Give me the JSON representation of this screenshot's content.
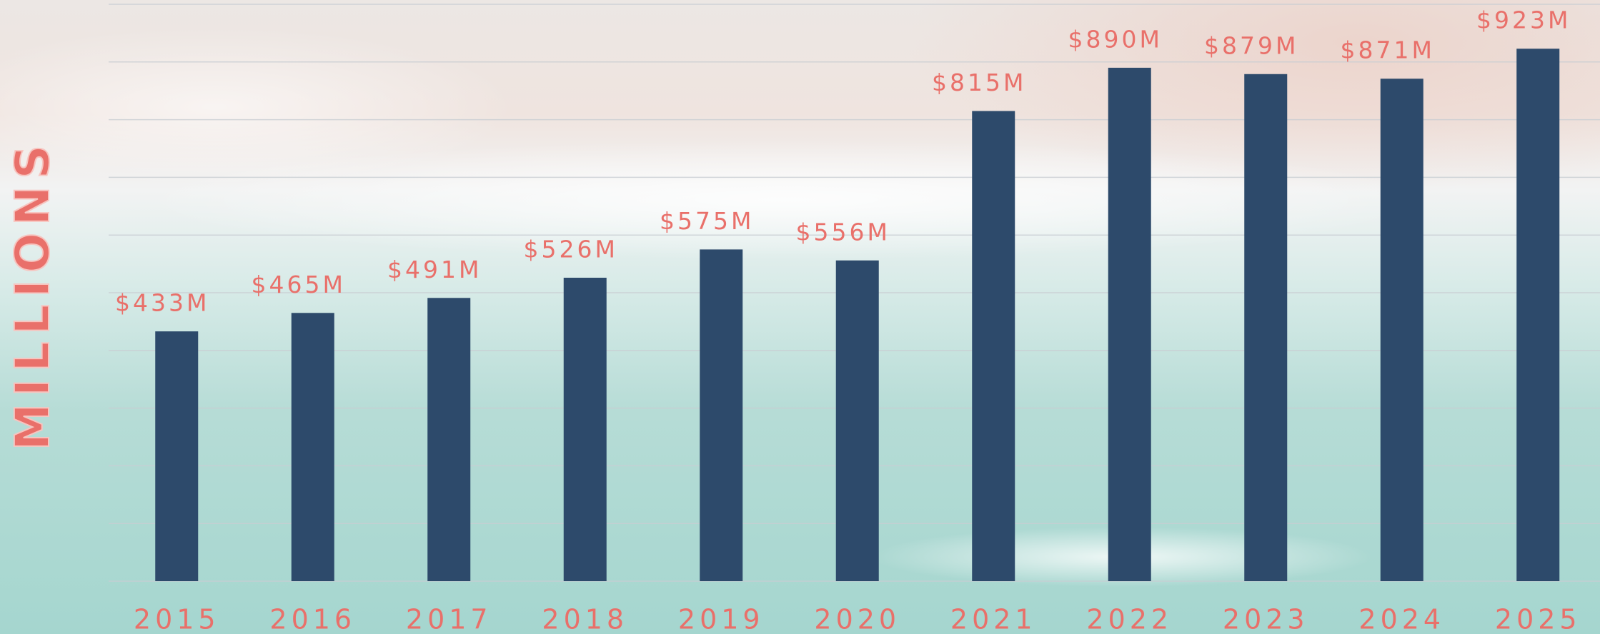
{
  "chart_data": {
    "type": "bar",
    "y_label": "MILLIONS",
    "categories": [
      "2015",
      "2016",
      "2017",
      "2018",
      "2019",
      "2020",
      "2021",
      "2022",
      "2023",
      "2024",
      "2025"
    ],
    "values": [
      433,
      465,
      491,
      526,
      575,
      556,
      815,
      890,
      879,
      871,
      923
    ],
    "value_labels": [
      "$433M",
      "$465M",
      "$491M",
      "$526M",
      "$575M",
      "$556M",
      "$815M",
      "$890M",
      "$879M",
      "$871M",
      "$923M"
    ],
    "color": "#2d4a6b",
    "ylim": [
      0,
      1000
    ],
    "yticks": [
      0,
      100,
      200,
      300,
      400,
      500,
      600,
      700,
      800,
      900,
      1000
    ],
    "grid": true
  }
}
